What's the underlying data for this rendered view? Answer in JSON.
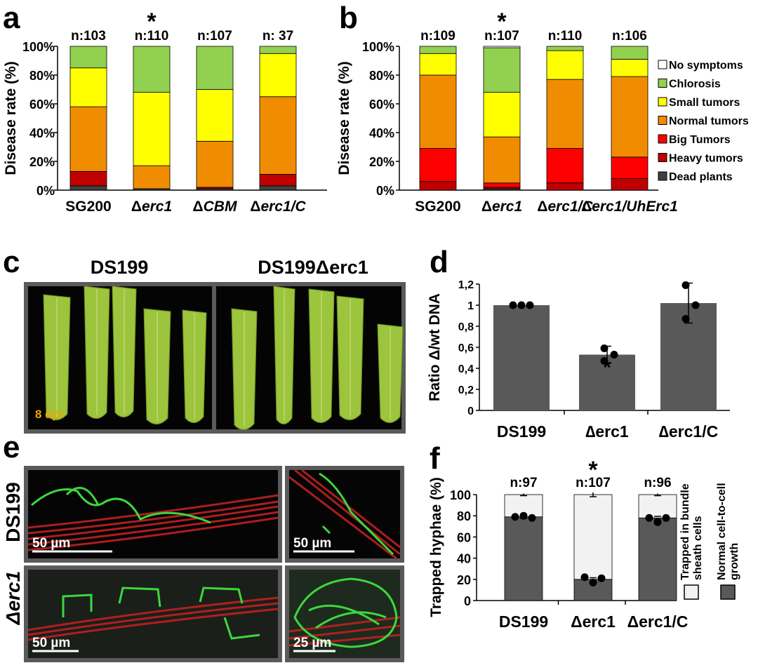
{
  "panels": {
    "a": {
      "label": "a"
    },
    "b": {
      "label": "b"
    },
    "c": {
      "label": "c",
      "title_left": "DS199",
      "title_right": "DS199Δerc1",
      "dpi_label": "8 dpi"
    },
    "d": {
      "label": "d"
    },
    "e": {
      "label": "e",
      "row1": "DS199",
      "row2": "Δerc1",
      "scalebars": [
        "50 µm",
        "50 µm",
        "50 µm",
        "25 µm"
      ]
    },
    "f": {
      "label": "f"
    }
  },
  "colors": {
    "no_symptoms": "#ffffff",
    "chlorosis": "#92d050",
    "small_tumors": "#ffff00",
    "normal_tumors": "#f08c00",
    "big_tumors": "#ff0000",
    "heavy_tumors": "#c00000",
    "dead_plants": "#404040",
    "bar_grey": "#595959",
    "bar_light": "#f2f2f2",
    "leaf": "#9cc43c",
    "micro_red": "#c82020",
    "micro_green": "#40e040"
  },
  "legend_stacked": [
    "No symptoms",
    "Chlorosis",
    "Small tumors",
    "Normal tumors",
    "Big Tumors",
    "Heavy tumors",
    "Dead plants"
  ],
  "chart_data": [
    {
      "panel": "a",
      "type": "bar",
      "stacked": true,
      "ylabel": "Disease rate (%)",
      "yticks": [
        "0%",
        "20%",
        "40%",
        "60%",
        "80%",
        "100%"
      ],
      "ylim": [
        0,
        100
      ],
      "categories": [
        "SG200",
        "Δerc1",
        "ΔCBM",
        "Δerc1/C"
      ],
      "n_labels": [
        "n:103",
        "n:110",
        "n:107",
        "n:  37"
      ],
      "asterisk_index": 1,
      "series": [
        {
          "name": "Dead plants",
          "values": [
            3,
            1,
            1,
            3
          ]
        },
        {
          "name": "Heavy tumors",
          "values": [
            10,
            0,
            1,
            8
          ]
        },
        {
          "name": "Big Tumors",
          "values": [
            0,
            0,
            0,
            0
          ]
        },
        {
          "name": "Normal tumors",
          "values": [
            45,
            16,
            32,
            54
          ]
        },
        {
          "name": "Small tumors",
          "values": [
            27,
            51,
            36,
            30
          ]
        },
        {
          "name": "Chlorosis",
          "values": [
            15,
            32,
            30,
            5
          ]
        },
        {
          "name": "No symptoms",
          "values": [
            0,
            0,
            0,
            0
          ]
        }
      ]
    },
    {
      "panel": "b",
      "type": "bar",
      "stacked": true,
      "ylabel": "Disease rate (%)",
      "yticks": [
        "0%",
        "20%",
        "40%",
        "60%",
        "80%",
        "100%"
      ],
      "ylim": [
        0,
        100
      ],
      "categories": [
        "SG200",
        "Δerc1",
        "Δerc1/C",
        "Δerc1/UhErc1"
      ],
      "n_labels": [
        "n:109",
        "n:107",
        "n:110",
        "n:106"
      ],
      "asterisk_index": 1,
      "series": [
        {
          "name": "Dead plants",
          "values": [
            0,
            1,
            0,
            0
          ]
        },
        {
          "name": "Heavy tumors",
          "values": [
            6,
            1,
            5,
            8
          ]
        },
        {
          "name": "Big Tumors",
          "values": [
            23,
            3,
            24,
            15
          ]
        },
        {
          "name": "Normal tumors",
          "values": [
            51,
            32,
            48,
            56
          ]
        },
        {
          "name": "Small tumors",
          "values": [
            15,
            31,
            20,
            12
          ]
        },
        {
          "name": "Chlorosis",
          "values": [
            5,
            31,
            3,
            9
          ]
        },
        {
          "name": "No symptoms",
          "values": [
            0,
            1,
            0,
            0
          ]
        }
      ]
    },
    {
      "panel": "d",
      "type": "bar",
      "ylabel": "Ratio Δ/wt DNA",
      "yticks": [
        "0",
        "0,2",
        "0,4",
        "0,6",
        "0,8",
        "1",
        "1,2"
      ],
      "ylim": [
        0,
        1.2
      ],
      "categories": [
        "DS199",
        "∆erc1",
        "∆erc1/C"
      ],
      "values": [
        1.0,
        0.53,
        1.02
      ],
      "errors": [
        0.0,
        0.08,
        0.19
      ],
      "points": [
        [
          1.0,
          1.0,
          1.0
        ],
        [
          0.47,
          0.53,
          0.59
        ],
        [
          0.87,
          1.0,
          1.19
        ]
      ],
      "asterisk_index": 1
    },
    {
      "panel": "f",
      "type": "bar",
      "stacked": true,
      "ylabel": "Trapped hyphae (%)",
      "yticks": [
        "0",
        "20",
        "40",
        "60",
        "80",
        "100"
      ],
      "ylim": [
        0,
        100
      ],
      "categories": [
        "DS199",
        "Δerc1",
        "Δerc1/C"
      ],
      "n_labels": [
        "n:97",
        "n:107",
        "n:96"
      ],
      "asterisk_index": 1,
      "series": [
        {
          "name": "Normal cell-to-cell growth",
          "values": [
            79,
            20,
            78
          ]
        },
        {
          "name": "Trapped in bundle sheath cells",
          "values": [
            21,
            80,
            22
          ]
        }
      ],
      "errors": [
        1,
        2,
        1
      ],
      "points": [
        [
          79,
          80,
          78
        ],
        [
          22,
          17,
          21
        ],
        [
          78,
          74,
          78
        ]
      ]
    }
  ],
  "legend_f": [
    "Trapped in bundle sheath cells",
    "Normal cell-to-cell growth"
  ]
}
